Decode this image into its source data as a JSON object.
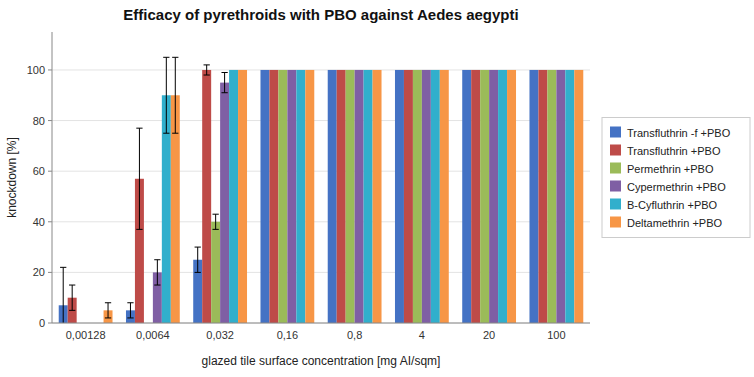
{
  "chart_data": {
    "type": "bar",
    "title": "Efficacy of pyrethroids with PBO against Aedes aegypti",
    "x_label": "glazed tile surface concentration [mg AI/sqm]",
    "y_label": "knockdown [%]",
    "categories": [
      "0,00128",
      "0,0064",
      "0,032",
      "0,16",
      "0,8",
      "4",
      "20",
      "100"
    ],
    "series": [
      {
        "name": "Transfluthrin -f +PBO",
        "color": "#4472C4",
        "values": [
          7,
          5,
          25,
          100,
          100,
          100,
          100,
          100
        ],
        "errors": [
          15,
          3,
          5,
          0,
          0,
          0,
          0,
          0
        ]
      },
      {
        "name": "Transfluthrin +PBO",
        "color": "#BE4B48",
        "values": [
          10,
          57,
          100,
          100,
          100,
          100,
          100,
          100
        ],
        "errors": [
          5,
          20,
          2,
          0,
          0,
          0,
          0,
          0
        ]
      },
      {
        "name": "Permethrin +PBO",
        "color": "#9BBB59",
        "values": [
          0,
          0,
          40,
          100,
          100,
          100,
          100,
          100
        ],
        "errors": [
          0,
          0,
          3,
          0,
          0,
          0,
          0,
          0
        ]
      },
      {
        "name": "Cypermethrin +PBO",
        "color": "#7F5FA4",
        "values": [
          0,
          20,
          95,
          100,
          100,
          100,
          100,
          100
        ],
        "errors": [
          0,
          5,
          4,
          0,
          0,
          0,
          0,
          0
        ]
      },
      {
        "name": "B-Cyfluthrin +PBO",
        "color": "#31AFCC",
        "values": [
          0,
          90,
          100,
          100,
          100,
          100,
          100,
          100
        ],
        "errors": [
          0,
          15,
          0,
          0,
          0,
          0,
          0,
          0
        ]
      },
      {
        "name": "Deltamethrin +PBO",
        "color": "#F79646",
        "values": [
          5,
          90,
          100,
          100,
          100,
          100,
          100,
          100
        ],
        "errors": [
          3,
          15,
          0,
          0,
          0,
          0,
          0,
          0
        ]
      }
    ],
    "ylim": [
      0,
      115
    ],
    "yticks": [
      0,
      20,
      40,
      60,
      80,
      100
    ],
    "grid": true,
    "legend": "right"
  }
}
